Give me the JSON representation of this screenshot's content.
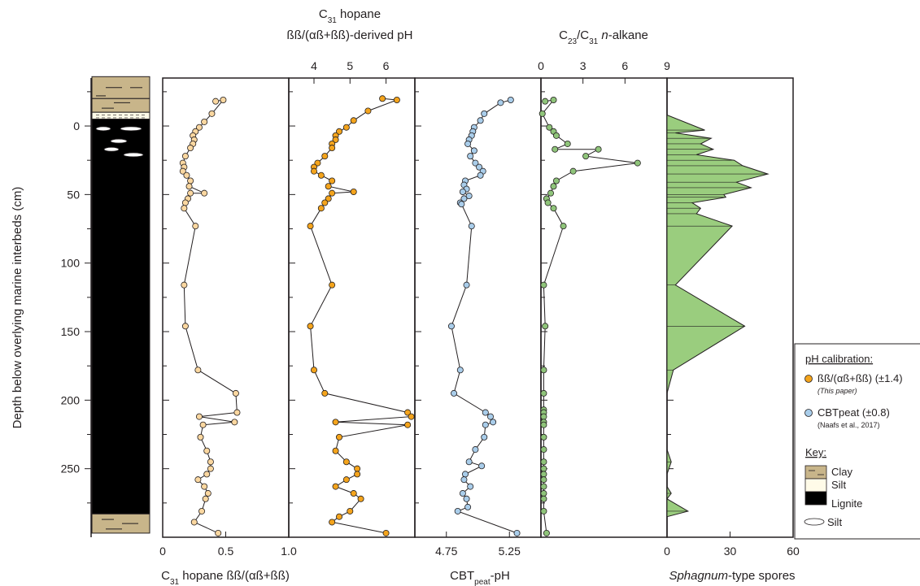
{
  "colors": {
    "hopane_ratio": "#fad7a0",
    "hopane_ph": "#f4a41c",
    "cbt": "#a9cdea",
    "alkane": "#8fc47a",
    "spores": "#9acd7e",
    "clay": "#c8b58a",
    "silt": "#fffbe8",
    "lignite": "#000000"
  },
  "lithology": {
    "legend": {
      "title": "Key:",
      "items": [
        "Clay",
        "Silt",
        "Lignite",
        "Silt"
      ]
    }
  },
  "legend": {
    "title": "pH calibration:",
    "items": [
      {
        "label": "ßß/(αß+ßß) (±1.4)",
        "note": "(This paper)"
      },
      {
        "label": "CBTpeat (±0.8)",
        "note": "(Naafs et al., 2017)"
      }
    ]
  },
  "chart_data": [
    {
      "type": "line",
      "name": "hopane-ratio",
      "title": "",
      "xlabel_main": "C",
      "xlabel_sub": "31",
      "xlabel_rest": " hopane ßß/(αß+ßß)",
      "ylabel": "Depth below overlying marine interbeds (cm)",
      "xlim": [
        0,
        1.0
      ],
      "xticks": [
        0,
        0.5,
        1.0
      ],
      "xtick_labels": [
        "0",
        "0.5",
        "1.0"
      ],
      "ylim": [
        -35,
        300
      ],
      "yticks": [
        0,
        50,
        100,
        150,
        200,
        250
      ],
      "x": [
        0.42,
        0.48,
        0.39,
        0.33,
        0.29,
        0.26,
        0.24,
        0.25,
        0.24,
        0.22,
        0.18,
        0.16,
        0.17,
        0.16,
        0.19,
        0.22,
        0.21,
        0.33,
        0.22,
        0.2,
        0.18,
        0.17,
        0.26,
        0.17,
        0.18,
        0.28,
        0.58,
        0.59,
        0.29,
        0.57,
        0.32,
        0.3,
        0.35,
        0.38,
        0.38,
        0.35,
        0.28,
        0.33,
        0.36,
        0.34,
        0.31,
        0.25,
        0.44
      ],
      "y": [
        -18,
        -19,
        -9,
        -3,
        1,
        4,
        7,
        10,
        13,
        16,
        22,
        27,
        30,
        33,
        36,
        40,
        44,
        49,
        49,
        53,
        56,
        60,
        73,
        116,
        146,
        178,
        195,
        209,
        212,
        216,
        218,
        227,
        237,
        245,
        250,
        254,
        258,
        263,
        268,
        272,
        281,
        289,
        297
      ]
    },
    {
      "type": "line",
      "name": "hopane-ph",
      "title": "",
      "top_title_line1_main": "C",
      "top_title_line1_sub": "31",
      "top_title_line1_rest": " hopane",
      "top_title_line2": "ßß/(αß+ßß)-derived pH",
      "xlim": [
        3.3,
        6.8
      ],
      "xticks": [
        4,
        5,
        6
      ],
      "xtick_labels": [
        "4",
        "5",
        "6"
      ],
      "ylim": [
        -35,
        300
      ],
      "x": [
        5.9,
        6.3,
        5.5,
        5.1,
        4.9,
        4.7,
        4.6,
        4.6,
        4.5,
        4.5,
        4.3,
        4.1,
        4.0,
        4.0,
        4.2,
        4.5,
        4.4,
        5.1,
        4.5,
        4.4,
        4.3,
        4.2,
        3.9,
        4.5,
        3.9,
        4.0,
        4.3,
        6.6,
        6.7,
        4.6,
        6.6,
        4.7,
        4.6,
        4.9,
        5.2,
        5.2,
        4.9,
        4.6,
        5.1,
        5.3,
        5.0,
        4.7,
        4.5,
        6.0
      ],
      "y": [
        -20,
        -19,
        -11,
        -4,
        1,
        4,
        7,
        10,
        13,
        16,
        22,
        27,
        30,
        33,
        36,
        40,
        44,
        48,
        49,
        53,
        56,
        60,
        73,
        116,
        146,
        178,
        195,
        209,
        212,
        216,
        218,
        227,
        237,
        245,
        250,
        254,
        258,
        263,
        268,
        272,
        281,
        285,
        289,
        297
      ]
    },
    {
      "type": "line",
      "name": "cbt-ph",
      "title": "",
      "xlabel_main": "CBT",
      "xlabel_sub": "peat",
      "xlabel_rest": "-pH",
      "xlim": [
        4.5,
        5.5
      ],
      "xticks": [
        4.75,
        5.25
      ],
      "xtick_labels": [
        "4.75",
        "5.25"
      ],
      "ylim": [
        -35,
        300
      ],
      "x": [
        5.26,
        5.18,
        5.05,
        5.02,
        4.97,
        4.96,
        4.95,
        4.93,
        4.92,
        4.97,
        4.94,
        4.98,
        5.01,
        5.04,
        5.02,
        4.9,
        4.89,
        4.91,
        4.88,
        4.93,
        4.89,
        4.86,
        4.87,
        4.95,
        4.91,
        4.79,
        4.86,
        4.81,
        5.06,
        5.1,
        5.12,
        5.06,
        5.05,
        4.98,
        4.93,
        5.03,
        4.9,
        4.89,
        4.94,
        4.88,
        4.91,
        4.92,
        4.84,
        5.31
      ],
      "y": [
        -19,
        -17,
        -9,
        -4,
        1,
        4,
        7,
        10,
        13,
        18,
        22,
        27,
        30,
        33,
        36,
        40,
        43,
        46,
        48,
        51,
        53,
        56,
        57,
        73,
        116,
        146,
        178,
        195,
        209,
        212,
        216,
        218,
        227,
        236,
        245,
        248,
        254,
        258,
        263,
        268,
        272,
        278,
        281,
        297
      ]
    },
    {
      "type": "line",
      "name": "alkane",
      "title": "",
      "top_title_main": "C",
      "top_title_sub1": "23",
      "top_title_mid": "/C",
      "top_title_sub2": "31",
      "top_title_italic": "n",
      "top_title_rest": "-alkane",
      "xlim": [
        0,
        9
      ],
      "xticks": [
        0,
        3,
        6,
        9
      ],
      "xtick_labels": [
        "0",
        "3",
        "6",
        "9"
      ],
      "ylim": [
        -35,
        300
      ],
      "x": [
        0.3,
        0.9,
        0.1,
        0.6,
        0.9,
        1.1,
        1.9,
        1.0,
        4.1,
        3.2,
        6.9,
        2.3,
        1.1,
        0.9,
        0.7,
        0.4,
        0.5,
        0.9,
        1.6,
        0.2,
        0.3,
        0.2,
        0.2,
        0.2,
        0.2,
        0.2,
        0.2,
        0.2,
        0.2,
        0.2,
        0.2,
        0.2,
        0.2,
        0.2,
        0.2,
        0.2,
        0.2,
        0.2,
        0.4
      ],
      "y": [
        -18,
        -19,
        -9,
        1,
        4,
        7,
        13,
        17,
        17,
        22,
        27,
        33,
        40,
        44,
        49,
        53,
        56,
        60,
        73,
        116,
        146,
        178,
        195,
        207,
        209,
        212,
        216,
        218,
        227,
        236,
        245,
        250,
        254,
        258,
        263,
        268,
        272,
        281,
        297
      ]
    },
    {
      "type": "area",
      "name": "spores",
      "title": "",
      "xlabel_italic": "Sphagnum",
      "xlabel_rest": "-type spores",
      "xlim": [
        0,
        60
      ],
      "xticks": [
        0,
        30,
        60
      ],
      "xtick_labels": [
        "0",
        "30",
        "60"
      ],
      "ylim": [
        -35,
        300
      ],
      "x": [
        0,
        18,
        4,
        21,
        16,
        22,
        14,
        32,
        36,
        48,
        33,
        40,
        27,
        28,
        12,
        16,
        14,
        31,
        4,
        37,
        3,
        0,
        0,
        0,
        0,
        2,
        0,
        0,
        2,
        0,
        10,
        0,
        0
      ],
      "y": [
        -8,
        3,
        5,
        9,
        13,
        17,
        21,
        25,
        29,
        35,
        41,
        45,
        50,
        52,
        56,
        60,
        64,
        73,
        116,
        146,
        178,
        195,
        209,
        218,
        236,
        245,
        254,
        263,
        268,
        272,
        281,
        285,
        297
      ]
    }
  ]
}
